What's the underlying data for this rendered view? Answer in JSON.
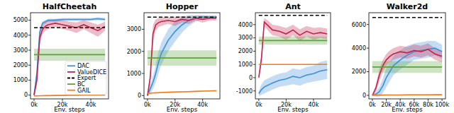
{
  "chart_data": [
    {
      "type": "line",
      "title": "HalfCheetah",
      "x_label": "Env. steps",
      "legend": "lower right",
      "x": [
        0,
        2000,
        4000,
        6000,
        8000,
        10000,
        15000,
        20000,
        25000,
        30000,
        35000,
        40000,
        45000,
        50000
      ],
      "xlim": [
        -2500,
        52500
      ],
      "xticks": [
        {
          "value": 0,
          "label": "0k"
        },
        {
          "value": 20000,
          "label": "20k"
        },
        {
          "value": 40000,
          "label": "40k"
        }
      ],
      "ylim": [
        -250,
        5500
      ],
      "yticks": [
        0,
        1000,
        2000,
        3000,
        4000,
        5000
      ],
      "series": [
        {
          "name": "DAC",
          "color": "#3a8fd9",
          "line_style": "solid",
          "values": [
            0,
            1500,
            4200,
            4800,
            4900,
            5000,
            5000,
            5050,
            5050,
            5050,
            5050,
            5050,
            5100,
            5050
          ],
          "errors": [
            50,
            300,
            300,
            150,
            120,
            100,
            100,
            100,
            100,
            100,
            100,
            100,
            100,
            100
          ]
        },
        {
          "name": "ValueDICE",
          "color": "#c4224b",
          "line_style": "solid",
          "values": [
            0,
            1000,
            3800,
            4400,
            4600,
            4700,
            4800,
            4700,
            4600,
            4500,
            4700,
            4500,
            4300,
            4600
          ],
          "errors": [
            50,
            300,
            400,
            300,
            300,
            300,
            250,
            300,
            300,
            350,
            300,
            350,
            400,
            300
          ]
        },
        {
          "name": "Expert",
          "color": "#000000",
          "line_style": "dashed",
          "values": [
            4500,
            4500,
            4500,
            4500,
            4500,
            4500,
            4500,
            4500,
            4500,
            4500,
            4500,
            4500,
            4500,
            4500
          ]
        },
        {
          "name": "BC",
          "color": "#5aa23c",
          "line_style": "solid",
          "values": [
            2700,
            2700,
            2700,
            2700,
            2700,
            2700,
            2700,
            2700,
            2700,
            2700,
            2700,
            2700,
            2700,
            2700
          ],
          "errors": [
            400,
            400,
            400,
            400,
            400,
            400,
            400,
            400,
            400,
            400,
            400,
            400,
            400,
            400
          ]
        },
        {
          "name": "GAIL",
          "color": "#f07f1b",
          "line_style": "solid",
          "values": [
            -50,
            -50,
            -40,
            -40,
            -30,
            -30,
            -20,
            -20,
            -10,
            -10,
            0,
            0,
            0,
            0
          ],
          "errors": [
            30,
            30,
            30,
            30,
            30,
            30,
            30,
            30,
            30,
            30,
            30,
            30,
            30,
            30
          ]
        }
      ]
    },
    {
      "type": "line",
      "title": "Hopper",
      "x_label": "Env. steps",
      "x": [
        0,
        2000,
        4000,
        6000,
        8000,
        10000,
        15000,
        20000,
        25000,
        30000,
        35000,
        40000,
        45000,
        50000
      ],
      "xlim": [
        -2500,
        52500
      ],
      "xticks": [
        {
          "value": 0,
          "label": "0k"
        },
        {
          "value": 20000,
          "label": "20k"
        },
        {
          "value": 40000,
          "label": "40k"
        }
      ],
      "ylim": [
        -150,
        3750
      ],
      "yticks": [
        0,
        1000,
        2000,
        3000
      ],
      "series": [
        {
          "name": "DAC",
          "color": "#3a8fd9",
          "line_style": "solid",
          "values": [
            0,
            300,
            600,
            1000,
            1500,
            1900,
            2500,
            2900,
            3200,
            3400,
            3500,
            3550,
            3550,
            3550
          ],
          "errors": [
            50,
            200,
            300,
            400,
            500,
            500,
            500,
            450,
            350,
            250,
            150,
            100,
            80,
            80
          ]
        },
        {
          "name": "ValueDICE",
          "color": "#c4224b",
          "line_style": "solid",
          "values": [
            0,
            800,
            2800,
            3200,
            3300,
            3350,
            3400,
            3350,
            3450,
            3400,
            3500,
            3450,
            3500,
            3500
          ],
          "errors": [
            50,
            300,
            400,
            250,
            200,
            200,
            150,
            200,
            150,
            150,
            100,
            150,
            100,
            100
          ]
        },
        {
          "name": "Expert",
          "color": "#000000",
          "line_style": "dashed",
          "values": [
            3550,
            3550,
            3550,
            3550,
            3550,
            3550,
            3550,
            3550,
            3550,
            3550,
            3550,
            3550,
            3550,
            3550
          ]
        },
        {
          "name": "BC",
          "color": "#5aa23c",
          "line_style": "solid",
          "values": [
            1700,
            1700,
            1700,
            1700,
            1700,
            1700,
            1700,
            1700,
            1700,
            1700,
            1700,
            1700,
            1700,
            1700
          ],
          "errors": [
            350,
            350,
            350,
            350,
            350,
            350,
            350,
            350,
            350,
            350,
            350,
            350,
            350,
            350
          ]
        },
        {
          "name": "GAIL",
          "color": "#f07f1b",
          "line_style": "solid",
          "values": [
            100,
            100,
            120,
            120,
            130,
            140,
            150,
            160,
            170,
            180,
            190,
            200,
            210,
            220
          ],
          "errors": [
            30,
            30,
            30,
            30,
            30,
            30,
            30,
            30,
            30,
            30,
            30,
            30,
            30,
            30
          ]
        }
      ]
    },
    {
      "type": "line",
      "title": "Ant",
      "x_label": "Env. steps",
      "x": [
        0,
        2000,
        4000,
        6000,
        8000,
        10000,
        15000,
        20000,
        25000,
        30000,
        35000,
        40000,
        45000,
        50000
      ],
      "xlim": [
        -2500,
        52500
      ],
      "xticks": [
        {
          "value": 0,
          "label": "0k"
        },
        {
          "value": 20000,
          "label": "20k"
        },
        {
          "value": 40000,
          "label": "40k"
        }
      ],
      "ylim": [
        -1600,
        4900
      ],
      "yticks": [
        -1000,
        0,
        1000,
        2000,
        3000,
        4000
      ],
      "series": [
        {
          "name": "DAC",
          "color": "#3a8fd9",
          "line_style": "solid",
          "values": [
            -1200,
            -900,
            -700,
            -600,
            -500,
            -400,
            -200,
            -100,
            100,
            0,
            200,
            300,
            500,
            600
          ],
          "errors": [
            200,
            400,
            500,
            500,
            500,
            500,
            500,
            500,
            600,
            600,
            600,
            600,
            700,
            700
          ]
        },
        {
          "name": "ValueDICE",
          "color": "#c4224b",
          "line_style": "solid",
          "values": [
            0,
            1500,
            4200,
            4000,
            3800,
            3600,
            3500,
            3300,
            3600,
            3200,
            3500,
            3300,
            3400,
            3300
          ],
          "errors": [
            100,
            400,
            300,
            350,
            400,
            400,
            400,
            450,
            400,
            450,
            400,
            450,
            400,
            400
          ]
        },
        {
          "name": "Expert",
          "color": "#000000",
          "line_style": "dashed",
          "values": [
            4700,
            4700,
            4700,
            4700,
            4700,
            4700,
            4700,
            4700,
            4700,
            4700,
            4700,
            4700,
            4700,
            4700
          ]
        },
        {
          "name": "BC",
          "color": "#5aa23c",
          "line_style": "solid",
          "values": [
            2800,
            2800,
            2800,
            2800,
            2800,
            2800,
            2800,
            2800,
            2800,
            2800,
            2800,
            2800,
            2800,
            2800
          ],
          "errors": [
            300,
            300,
            300,
            300,
            300,
            300,
            300,
            300,
            300,
            300,
            300,
            300,
            300,
            300
          ]
        },
        {
          "name": "GAIL",
          "color": "#f07f1b",
          "line_style": "solid",
          "values": [
            1000,
            1000,
            1000,
            1000,
            1000,
            1000,
            1000,
            1000,
            1000,
            1000,
            1000,
            1000,
            1000,
            1000
          ],
          "errors": [
            30,
            30,
            30,
            30,
            30,
            30,
            30,
            30,
            30,
            30,
            30,
            30,
            30,
            30
          ]
        }
      ]
    },
    {
      "type": "line",
      "title": "Walker2d",
      "x_label": "Env. steps",
      "x": [
        0,
        5000,
        10000,
        15000,
        20000,
        25000,
        30000,
        40000,
        50000,
        60000,
        70000,
        80000,
        90000,
        100000
      ],
      "xlim": [
        -5000,
        105000
      ],
      "xticks": [
        {
          "value": 0,
          "label": "0k"
        },
        {
          "value": 20000,
          "label": "20k"
        },
        {
          "value": 40000,
          "label": "40k"
        },
        {
          "value": 60000,
          "label": "60k"
        },
        {
          "value": 80000,
          "label": "80k"
        },
        {
          "value": 100000,
          "label": "100k"
        }
      ],
      "ylim": [
        -300,
        7000
      ],
      "yticks": [
        0,
        2000,
        4000,
        6000
      ],
      "series": [
        {
          "name": "DAC",
          "color": "#3a8fd9",
          "line_style": "solid",
          "values": [
            0,
            100,
            300,
            800,
            1500,
            2000,
            2500,
            3000,
            3400,
            3700,
            3800,
            3900,
            4000,
            3700
          ],
          "errors": [
            50,
            200,
            400,
            600,
            800,
            800,
            800,
            800,
            800,
            700,
            700,
            700,
            600,
            600
          ]
        },
        {
          "name": "ValueDICE",
          "color": "#c4224b",
          "line_style": "solid",
          "values": [
            0,
            600,
            1700,
            2500,
            3000,
            3300,
            3500,
            3700,
            3600,
            3800,
            3700,
            3900,
            3500,
            3300
          ],
          "errors": [
            50,
            300,
            500,
            500,
            500,
            500,
            500,
            500,
            500,
            500,
            500,
            500,
            500,
            500
          ]
        },
        {
          "name": "Expert",
          "color": "#000000",
          "line_style": "dashed",
          "values": [
            6600,
            6600,
            6600,
            6600,
            6600,
            6600,
            6600,
            6600,
            6600,
            6600,
            6600,
            6600,
            6600,
            6600
          ]
        },
        {
          "name": "BC",
          "color": "#5aa23c",
          "line_style": "solid",
          "values": [
            2400,
            2400,
            2400,
            2400,
            2400,
            2400,
            2400,
            2400,
            2400,
            2400,
            2400,
            2400,
            2400,
            2400
          ],
          "errors": [
            500,
            500,
            500,
            500,
            500,
            500,
            500,
            500,
            500,
            500,
            500,
            500,
            500,
            500
          ]
        },
        {
          "name": "GAIL",
          "color": "#f07f1b",
          "line_style": "solid",
          "values": [
            20,
            20,
            20,
            20,
            30,
            30,
            30,
            30,
            40,
            40,
            40,
            40,
            50,
            50
          ],
          "errors": [
            50,
            50,
            50,
            50,
            50,
            50,
            50,
            50,
            50,
            50,
            50,
            50,
            50,
            50
          ]
        }
      ]
    }
  ]
}
